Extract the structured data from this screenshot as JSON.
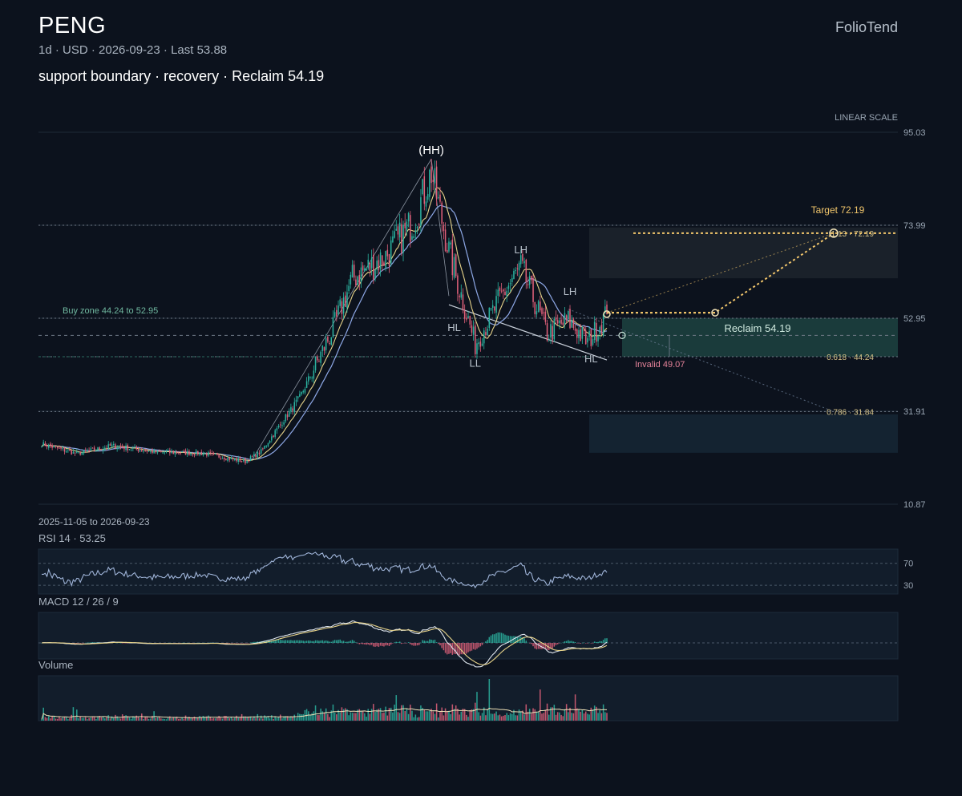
{
  "header": {
    "ticker": "PENG",
    "meta": "1d · USD · 2026-09-23 · Last 53.88",
    "headline": "support boundary · recovery · Reclaim 54.19",
    "brand": "FolioTend"
  },
  "colors": {
    "background": "#0c121d",
    "up": "#2bb3a0",
    "down": "#e0607a",
    "ma_fast": "#e8d48a",
    "ma_slow": "#8ea8e6",
    "target": "#f2c66b",
    "buy_zone": "#2a8a6f",
    "grid": "#1e2a38"
  },
  "chart_data": {
    "type": "candlestick",
    "scale_label": "LINEAR SCALE",
    "date_range": "2025-11-05 to 2026-09-23",
    "date_start": "2025-11-05",
    "date_end": "2026-09-23",
    "y_ticks": [
      95.03,
      73.99,
      52.95,
      31.91,
      10.87
    ],
    "y_range": [
      10.87,
      95.03
    ],
    "last_price": 53.88,
    "ohlc_waypoints": [
      {
        "date": "2025-11-05",
        "close": 24.5
      },
      {
        "date": "2025-11-25",
        "close": 22.3
      },
      {
        "date": "2025-12-15",
        "close": 24.1
      },
      {
        "date": "2026-01-10",
        "close": 22.6
      },
      {
        "date": "2026-02-05",
        "close": 22.4
      },
      {
        "date": "2026-03-01",
        "close": 20.5
      },
      {
        "date": "2026-03-10",
        "close": 22.8
      },
      {
        "date": "2026-04-01",
        "close": 35.0
      },
      {
        "date": "2026-04-20",
        "close": 50.5
      },
      {
        "date": "2026-05-01",
        "close": 62.0
      },
      {
        "date": "2026-05-20",
        "close": 67.0
      },
      {
        "date": "2026-06-05",
        "close": 75.0
      },
      {
        "date": "2026-06-15",
        "close": 86.0
      },
      {
        "date": "2026-06-25",
        "close": 68.0
      },
      {
        "date": "2026-07-10",
        "close": 47.0
      },
      {
        "date": "2026-07-25",
        "close": 58.0
      },
      {
        "date": "2026-08-05",
        "close": 64.5
      },
      {
        "date": "2026-08-20",
        "close": 49.5
      },
      {
        "date": "2026-09-01",
        "close": 52.5
      },
      {
        "date": "2026-09-12",
        "close": 47.5
      },
      {
        "date": "2026-09-23",
        "close": 53.88
      }
    ],
    "levels": {
      "target_line": 72.19,
      "top_dotted": 73.99,
      "reclaim": 54.19,
      "buy_zone": [
        44.24,
        52.95
      ],
      "invalid": 49.07,
      "fib_618": 44.24,
      "fib_786": 31.84,
      "fib_label_upper": 72.19
    },
    "labels": {
      "buy_zone": "Buy zone 44.24 to 52.95",
      "reclaim": "Reclaim 54.19",
      "invalid": "Invalid 49.07",
      "target": "Target 72.19",
      "fib_618": "0.618 · 44.24",
      "fib_786": "0.786 · 31.84",
      "fib_upper": "1.13 · 72.19"
    },
    "pivots": [
      {
        "label": "(HH)",
        "date": "2026-06-15",
        "value": 88.0
      },
      {
        "label": "HL",
        "date": "2026-06-28",
        "value": 54.0
      },
      {
        "label": "LL",
        "date": "2026-07-10",
        "value": 46.0
      },
      {
        "label": "LH",
        "date": "2026-08-05",
        "value": 65.5
      },
      {
        "label": "LH",
        "date": "2026-09-02",
        "value": 56.0
      },
      {
        "label": "HL",
        "date": "2026-09-14",
        "value": 47.0
      }
    ],
    "rsi": {
      "label": "RSI 14 · 53.25",
      "period": 14,
      "value": 53.25,
      "levels": [
        70,
        30
      ]
    },
    "macd": {
      "label": "MACD 12 / 26 / 9",
      "fast": 12,
      "slow": 26,
      "signal": 9
    },
    "volume": {
      "label": "Volume"
    }
  }
}
